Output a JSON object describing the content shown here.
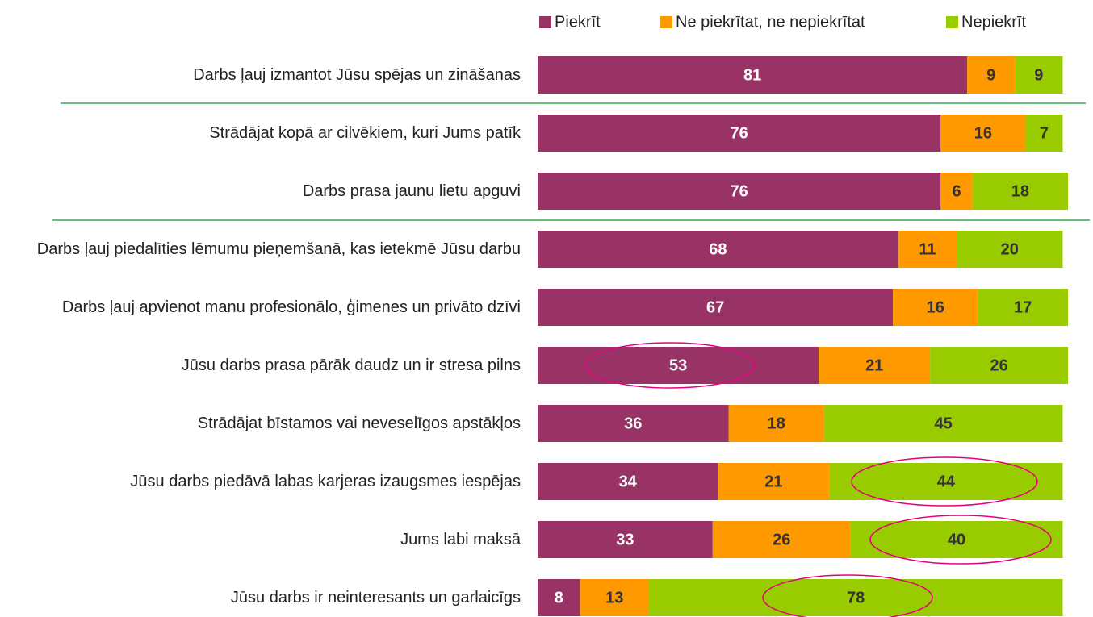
{
  "chart_data": {
    "type": "stacked_bar_horizontal",
    "categories": [
      "Darbs ļauj izmantot Jūsu spējas un zināšanas",
      "Strādājat kopā ar cilvēkiem, kuri Jums patīk",
      "Darbs prasa jaunu lietu apguvi",
      "Darbs ļauj piedalīties lēmumu pieņemšanā, kas ietekmē Jūsu darbu",
      "Darbs ļauj apvienot manu profesionālo, ģimenes un privāto dzīvi",
      "Jūsu darbs prasa pārāk daudz un ir stresa pilns",
      "Strādājat bīstamos vai neveselīgos apstākļos",
      "Jūsu darbs piedāvā labas karjeras izaugsmes iespējas",
      "Jums labi maksā",
      "Jūsu darbs ir neinteresants un garlaicīgs"
    ],
    "series": [
      {
        "name": "Piekrīt",
        "color": "#993366",
        "label_color": "#ffffff",
        "values": [
          81,
          76,
          76,
          68,
          67,
          53,
          36,
          34,
          33,
          8
        ]
      },
      {
        "name": "Ne piekrītat, ne nepiekrītat",
        "color": "#ff9900",
        "label_color": "#333333",
        "values": [
          9,
          16,
          6,
          11,
          16,
          21,
          18,
          21,
          26,
          13
        ]
      },
      {
        "name": "Nepiekrīt",
        "color": "#99cc00",
        "label_color": "#333333",
        "values": [
          9,
          7,
          18,
          20,
          17,
          26,
          45,
          44,
          40,
          78
        ]
      }
    ],
    "xlim": [
      0,
      100
    ]
  }
}
